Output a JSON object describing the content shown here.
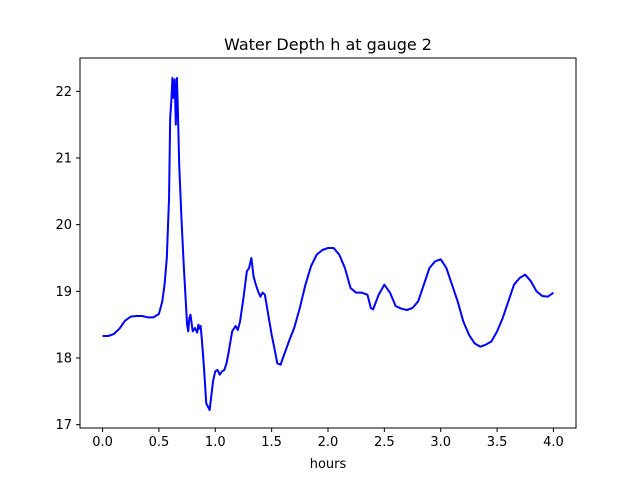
{
  "chart_data": {
    "type": "line",
    "title": "Water Depth h at gauge 2",
    "xlabel": "hours",
    "ylabel": "",
    "xlim": [
      -0.2,
      4.2
    ],
    "ylim": [
      16.95,
      22.5
    ],
    "xticks": [
      0.0,
      0.5,
      1.0,
      1.5,
      2.0,
      2.5,
      3.0,
      3.5,
      4.0
    ],
    "xtick_labels": [
      "0.0",
      "0.5",
      "1.0",
      "1.5",
      "2.0",
      "2.5",
      "3.0",
      "3.5",
      "4.0"
    ],
    "yticks": [
      17,
      18,
      19,
      20,
      21,
      22
    ],
    "ytick_labels": [
      "17",
      "18",
      "19",
      "20",
      "21",
      "22"
    ],
    "grid": false,
    "legend": "none",
    "series": [
      {
        "color": "#0000ff",
        "x": [
          0.0,
          0.05,
          0.1,
          0.15,
          0.2,
          0.25,
          0.3,
          0.35,
          0.4,
          0.45,
          0.5,
          0.53,
          0.55,
          0.57,
          0.59,
          0.6,
          0.61,
          0.62,
          0.63,
          0.64,
          0.65,
          0.66,
          0.67,
          0.68,
          0.7,
          0.72,
          0.74,
          0.75,
          0.76,
          0.77,
          0.78,
          0.8,
          0.82,
          0.84,
          0.85,
          0.86,
          0.87,
          0.88,
          0.9,
          0.92,
          0.95,
          0.98,
          1.0,
          1.02,
          1.04,
          1.06,
          1.08,
          1.1,
          1.12,
          1.15,
          1.18,
          1.2,
          1.22,
          1.25,
          1.28,
          1.3,
          1.32,
          1.34,
          1.36,
          1.38,
          1.4,
          1.42,
          1.44,
          1.47,
          1.5,
          1.53,
          1.55,
          1.58,
          1.6,
          1.63,
          1.66,
          1.7,
          1.75,
          1.8,
          1.85,
          1.9,
          1.95,
          2.0,
          2.05,
          2.1,
          2.15,
          2.2,
          2.25,
          2.3,
          2.35,
          2.38,
          2.4,
          2.45,
          2.5,
          2.55,
          2.6,
          2.65,
          2.7,
          2.75,
          2.8,
          2.85,
          2.9,
          2.95,
          3.0,
          3.05,
          3.1,
          3.15,
          3.2,
          3.25,
          3.3,
          3.35,
          3.4,
          3.45,
          3.5,
          3.55,
          3.6,
          3.65,
          3.7,
          3.75,
          3.8,
          3.85,
          3.9,
          3.95,
          4.0
        ],
        "y": [
          18.33,
          18.33,
          18.36,
          18.44,
          18.56,
          18.62,
          18.63,
          18.63,
          18.61,
          18.61,
          18.66,
          18.85,
          19.1,
          19.5,
          20.4,
          21.6,
          21.85,
          22.2,
          21.9,
          22.18,
          21.5,
          22.2,
          21.6,
          20.9,
          20.1,
          19.4,
          18.8,
          18.5,
          18.4,
          18.6,
          18.65,
          18.4,
          18.45,
          18.38,
          18.5,
          18.44,
          18.48,
          18.3,
          17.85,
          17.32,
          17.22,
          17.65,
          17.8,
          17.82,
          17.75,
          17.8,
          17.82,
          17.92,
          18.1,
          18.4,
          18.48,
          18.42,
          18.55,
          18.9,
          19.3,
          19.35,
          19.5,
          19.22,
          19.1,
          19.0,
          18.92,
          18.98,
          18.95,
          18.65,
          18.35,
          18.1,
          17.92,
          17.9,
          18.0,
          18.14,
          18.28,
          18.45,
          18.75,
          19.1,
          19.38,
          19.55,
          19.62,
          19.65,
          19.65,
          19.55,
          19.35,
          19.05,
          18.98,
          18.98,
          18.95,
          18.75,
          18.73,
          18.95,
          19.1,
          18.98,
          18.78,
          18.74,
          18.72,
          18.75,
          18.85,
          19.1,
          19.35,
          19.45,
          19.48,
          19.35,
          19.1,
          18.85,
          18.55,
          18.35,
          18.22,
          18.17,
          18.2,
          18.25,
          18.4,
          18.6,
          18.85,
          19.1,
          19.2,
          19.25,
          19.15,
          19.0,
          18.93,
          18.92,
          18.98
        ]
      }
    ]
  }
}
